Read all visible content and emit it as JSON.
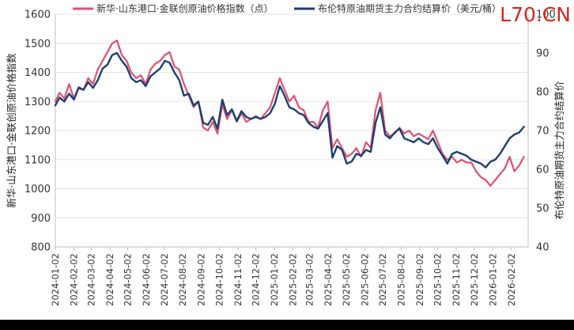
{
  "chart_data": {
    "type": "line",
    "legend_position": "top",
    "watermark": "L70.CN",
    "left_axis": {
      "title": "新华·山东港口·金联创原油价格指数",
      "range": [
        800,
        1600
      ],
      "ticks": [
        "800",
        "900",
        "1000",
        "1100",
        "1200",
        "1300",
        "1400",
        "1500",
        "1600"
      ]
    },
    "right_axis": {
      "title": "布伦特原油期货主力合约结算价",
      "range": [
        40,
        100
      ],
      "ticks": [
        "40",
        "50",
        "60",
        "70",
        "80",
        "90",
        "100"
      ]
    },
    "x_ticks": [
      "2024-01-02",
      "2024-02-02",
      "2024-03-02",
      "2024-04-02",
      "2024-05-02",
      "2024-06-02",
      "2024-07-02",
      "2024-08-02",
      "2024-09-02",
      "2024-10-02",
      "2024-11-02",
      "2024-12-02",
      "2025-01-02",
      "2025-02-02",
      "2025-03-02",
      "2025-04-02",
      "2025-05-02",
      "2025-06-02",
      "2025-07-02",
      "2025-08-02",
      "2025-09-02",
      "2025-10-02",
      "2025-11-02",
      "2025-12-02",
      "2026-01-02",
      "2026-02-02"
    ],
    "grid": true,
    "series": [
      {
        "name": "新华·山东港口·金联创原油价格指数（点）",
        "axis": "left",
        "color": "#e0506f",
        "x": [
          "2024-01-02",
          "2024-01-09",
          "2024-01-17",
          "2024-01-25",
          "2024-02-02",
          "2024-02-10",
          "2024-02-18",
          "2024-02-26",
          "2024-03-05",
          "2024-03-13",
          "2024-03-21",
          "2024-03-29",
          "2024-04-06",
          "2024-04-14",
          "2024-04-22",
          "2024-04-30",
          "2024-05-08",
          "2024-05-16",
          "2024-05-24",
          "2024-06-01",
          "2024-06-09",
          "2024-06-17",
          "2024-06-25",
          "2024-07-03",
          "2024-07-11",
          "2024-07-19",
          "2024-07-27",
          "2024-08-04",
          "2024-08-12",
          "2024-08-20",
          "2024-08-28",
          "2024-09-05",
          "2024-09-13",
          "2024-09-21",
          "2024-09-29",
          "2024-10-07",
          "2024-10-15",
          "2024-10-23",
          "2024-10-31",
          "2024-11-08",
          "2024-11-16",
          "2024-11-24",
          "2024-12-02",
          "2024-12-10",
          "2024-12-18",
          "2024-12-26",
          "2025-01-03",
          "2025-01-11",
          "2025-01-19",
          "2025-01-27",
          "2025-02-04",
          "2025-02-12",
          "2025-02-20",
          "2025-02-28",
          "2025-03-08",
          "2025-03-16",
          "2025-03-24",
          "2025-04-01",
          "2025-04-09",
          "2025-04-17",
          "2025-04-25",
          "2025-05-03",
          "2025-05-11",
          "2025-05-19",
          "2025-05-27",
          "2025-06-04",
          "2025-06-12",
          "2025-06-20",
          "2025-06-28",
          "2025-07-06",
          "2025-07-14",
          "2025-07-22",
          "2025-07-30",
          "2025-08-07",
          "2025-08-15",
          "2025-08-23",
          "2025-08-31",
          "2025-09-08",
          "2025-09-16",
          "2025-09-24",
          "2025-10-02",
          "2025-10-10",
          "2025-10-18",
          "2025-10-26",
          "2025-11-03",
          "2025-11-11",
          "2025-11-19",
          "2025-11-27",
          "2025-12-05",
          "2025-12-13",
          "2025-12-21",
          "2025-12-29",
          "2026-01-06",
          "2026-01-14",
          "2026-01-22",
          "2026-01-30",
          "2026-02-07",
          "2026-02-15",
          "2026-02-23"
        ],
        "values": [
          1300,
          1330,
          1310,
          1360,
          1310,
          1350,
          1340,
          1380,
          1360,
          1410,
          1440,
          1470,
          1500,
          1510,
          1460,
          1440,
          1400,
          1380,
          1390,
          1360,
          1410,
          1430,
          1440,
          1460,
          1470,
          1420,
          1410,
          1360,
          1320,
          1280,
          1300,
          1210,
          1200,
          1230,
          1190,
          1290,
          1240,
          1270,
          1230,
          1260,
          1230,
          1240,
          1250,
          1240,
          1260,
          1280,
          1330,
          1380,
          1340,
          1300,
          1320,
          1280,
          1270,
          1230,
          1230,
          1210,
          1270,
          1300,
          1140,
          1170,
          1140,
          1110,
          1120,
          1140,
          1110,
          1160,
          1140,
          1270,
          1330,
          1200,
          1180,
          1190,
          1210,
          1190,
          1200,
          1180,
          1190,
          1180,
          1170,
          1200,
          1160,
          1120,
          1100,
          1110,
          1090,
          1100,
          1090,
          1090,
          1060,
          1040,
          1030,
          1010,
          1030,
          1050,
          1070,
          1110,
          1060,
          1080,
          1110
        ]
      },
      {
        "name": "布伦特原油期货主力合约结算价（美元/桶）",
        "axis": "right",
        "color": "#1b3f73",
        "x": [
          "2024-01-02",
          "2024-01-09",
          "2024-01-17",
          "2024-01-25",
          "2024-02-02",
          "2024-02-10",
          "2024-02-18",
          "2024-02-26",
          "2024-03-05",
          "2024-03-13",
          "2024-03-21",
          "2024-03-29",
          "2024-04-06",
          "2024-04-14",
          "2024-04-22",
          "2024-04-30",
          "2024-05-08",
          "2024-05-16",
          "2024-05-24",
          "2024-06-01",
          "2024-06-09",
          "2024-06-17",
          "2024-06-25",
          "2024-07-03",
          "2024-07-11",
          "2024-07-19",
          "2024-07-27",
          "2024-08-04",
          "2024-08-12",
          "2024-08-20",
          "2024-08-28",
          "2024-09-05",
          "2024-09-13",
          "2024-09-21",
          "2024-09-29",
          "2024-10-07",
          "2024-10-15",
          "2024-10-23",
          "2024-10-31",
          "2024-11-08",
          "2024-11-16",
          "2024-11-24",
          "2024-12-02",
          "2024-12-10",
          "2024-12-18",
          "2024-12-26",
          "2025-01-03",
          "2025-01-11",
          "2025-01-19",
          "2025-01-27",
          "2025-02-04",
          "2025-02-12",
          "2025-02-20",
          "2025-02-28",
          "2025-03-08",
          "2025-03-16",
          "2025-03-24",
          "2025-04-01",
          "2025-04-09",
          "2025-04-17",
          "2025-04-25",
          "2025-05-03",
          "2025-05-11",
          "2025-05-19",
          "2025-05-27",
          "2025-06-04",
          "2025-06-12",
          "2025-06-20",
          "2025-06-28",
          "2025-07-06",
          "2025-07-14",
          "2025-07-22",
          "2025-07-30",
          "2025-08-07",
          "2025-08-15",
          "2025-08-23",
          "2025-08-31",
          "2025-09-08",
          "2025-09-16",
          "2025-09-24",
          "2025-10-02",
          "2025-10-10",
          "2025-10-18",
          "2025-10-26",
          "2025-11-03",
          "2025-11-11",
          "2025-11-19",
          "2025-11-27",
          "2025-12-05",
          "2025-12-13",
          "2025-12-21",
          "2025-12-29",
          "2026-01-06",
          "2026-01-14",
          "2026-01-22",
          "2026-01-30",
          "2026-02-07",
          "2026-02-15",
          "2026-02-23"
        ],
        "values": [
          76.5,
          78.5,
          77.5,
          79.5,
          78,
          81,
          80.5,
          82.5,
          81,
          83,
          86,
          87,
          89.5,
          90,
          88,
          86.5,
          83.5,
          82.5,
          83,
          81.5,
          84,
          85,
          86,
          88,
          87.5,
          85,
          83,
          79,
          79.5,
          76.5,
          77.5,
          72,
          71.5,
          73.5,
          70.5,
          78,
          74,
          75.5,
          72.5,
          75,
          73.5,
          73,
          73.5,
          73,
          73.5,
          74.5,
          77,
          81.5,
          79,
          76,
          75.5,
          74.5,
          74,
          72,
          71,
          70.5,
          72.5,
          74.5,
          63,
          66,
          65,
          61.5,
          62,
          64,
          63.5,
          65,
          64.5,
          72,
          76,
          69,
          68,
          69.5,
          70.5,
          68,
          67.5,
          67,
          68,
          67,
          66.5,
          68,
          65.5,
          63.5,
          61.5,
          64,
          64.5,
          64,
          63.5,
          62.5,
          62,
          61.5,
          60.5,
          62,
          62.5,
          64,
          66,
          68,
          69,
          69.5,
          71
        ]
      }
    ]
  }
}
